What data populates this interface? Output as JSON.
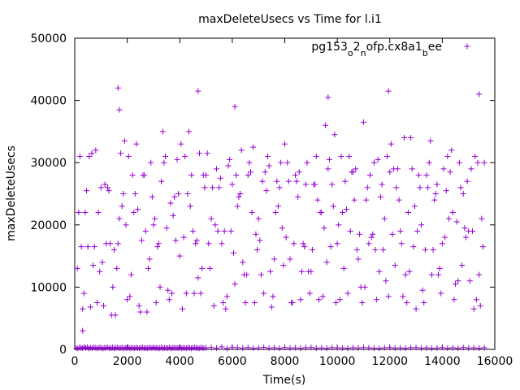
{
  "chart_data": {
    "type": "scatter",
    "title": "maxDeleteUsecs vs Time for l.i1",
    "xlabel": "Time(s)",
    "ylabel": "maxDeleteUsecs",
    "xlim": [
      0,
      16000
    ],
    "ylim": [
      0,
      50000
    ],
    "x_ticks": [
      0,
      2000,
      4000,
      6000,
      8000,
      10000,
      12000,
      14000,
      16000
    ],
    "y_ticks": [
      0,
      10000,
      20000,
      30000,
      40000,
      50000
    ],
    "grid": false,
    "legend_position": "top-right",
    "series": [
      {
        "name": "pg153_o2_nofp.cx8a1_bee",
        "marker": "+",
        "color": "#9400d3",
        "x": [
          60,
          120,
          180,
          240,
          300,
          360,
          420,
          480,
          540,
          600,
          660,
          720,
          780,
          840,
          900,
          960,
          1020,
          1080,
          1140,
          1200,
          1260,
          1320,
          1380,
          1440,
          1500,
          1560,
          1620,
          1680,
          1740,
          1800,
          1860,
          1920,
          1980,
          2040,
          2100,
          2160,
          2220,
          2280,
          2340,
          2400,
          2460,
          2520,
          2580,
          2640,
          2700,
          2760,
          2820,
          2880,
          2940,
          3000,
          3060,
          3120,
          3180,
          3240,
          3300,
          3360,
          3420,
          3480,
          3540,
          3600,
          3660,
          3720,
          3780,
          3840,
          3900,
          3960,
          4020,
          4080,
          4140,
          4200,
          4260,
          4320,
          4380,
          4440,
          4500,
          4560,
          4620,
          4680,
          4740,
          4800,
          4860,
          4920,
          5000,
          5200,
          5400,
          5600,
          5800,
          6000,
          6200,
          6400,
          6600,
          6800,
          7000,
          7200,
          7400,
          7600,
          7800,
          8000,
          8200,
          8400,
          8600,
          8800,
          9000,
          9200,
          9400,
          9600,
          9800,
          10000,
          10200,
          10400,
          10600,
          10800,
          11000,
          11200,
          11400,
          11600,
          11800,
          12000,
          12200,
          12400,
          12600,
          12800,
          13000,
          13200,
          13400,
          13600,
          13800,
          14000,
          14200,
          14400,
          14600,
          14800,
          15000,
          15200,
          15400,
          15600,
          100,
          300,
          500,
          700,
          900,
          1100,
          1300,
          1500,
          1700,
          1900,
          2100,
          2300,
          2500,
          2700,
          2900,
          3100,
          3300,
          3500,
          3700,
          3900,
          4100,
          4300,
          4500,
          4700,
          4900,
          5100,
          5300,
          5500,
          5700,
          5900,
          6100,
          6300,
          6500,
          6700,
          6900,
          7100,
          7300,
          7500,
          7700,
          7900,
          8100,
          8300,
          8500,
          8700,
          8900,
          9100,
          9300,
          9500,
          9700,
          9900,
          10100,
          10300,
          10500,
          10700,
          10900,
          11100,
          11300,
          11500,
          11700,
          11900,
          12100,
          12300,
          12500,
          12700,
          12900,
          13100,
          13300,
          13500,
          13700,
          13900,
          14100,
          14300,
          14500,
          14700,
          14900,
          15100,
          15300,
          15500,
          150,
          350,
          550,
          750,
          950,
          1150,
          1350,
          1550,
          1750,
          1950,
          2150,
          2350,
          2550,
          2750,
          2950,
          3150,
          3350,
          3550,
          3750,
          3950,
          4150,
          4350,
          4550,
          4750,
          4950,
          5150,
          5350,
          5550,
          5750,
          5950,
          6150,
          6350,
          6550,
          6750,
          6950,
          7150,
          7350,
          7550,
          7750,
          7950,
          8150,
          8350,
          8550,
          8750,
          8950,
          9150,
          9350,
          9550,
          9750,
          9950,
          10150,
          10350,
          10550,
          10750,
          10950,
          11150,
          11350,
          11550,
          11750,
          11950,
          12150,
          12350,
          12550,
          12750,
          12950,
          13150,
          13350,
          13550,
          13750,
          13950,
          14150,
          14350,
          14550,
          14750,
          14950,
          15150,
          15350,
          15550,
          200,
          400,
          600,
          800,
          1000,
          1200,
          1400,
          1600,
          1800,
          2000,
          2200,
          2400,
          2600,
          2800,
          3000,
          3200,
          3400,
          3600,
          3800,
          4000,
          4200,
          4400,
          4600,
          4800,
          5000,
          5200,
          5400,
          5600,
          5800,
          6000,
          6200,
          6400,
          6600,
          6800,
          7000,
          7200,
          7400,
          7600,
          7800,
          8000,
          8200,
          8400,
          8600,
          8800,
          9000,
          9200,
          9400,
          9600,
          9800,
          10000,
          10200,
          10400,
          10600,
          10800,
          11000,
          11200,
          11400,
          11600,
          11800,
          12000,
          12200,
          12400,
          12600,
          12800,
          13000,
          13200,
          13400,
          13600,
          13800,
          14000,
          14200,
          14400,
          14600,
          14800,
          15000,
          15200,
          15400,
          15600,
          250,
          450,
          650,
          850,
          1050,
          1250,
          1450,
          1650,
          1850,
          2050,
          2250,
          2450,
          2650,
          2850,
          3050,
          3250,
          3450,
          3650,
          3850,
          4050,
          4250,
          4450,
          4650,
          4850,
          5050,
          5250,
          5450,
          5650,
          5850,
          6050,
          6250,
          6450,
          6650,
          6850,
          7050,
          7250,
          7450,
          7650,
          7850,
          8050,
          8250,
          8450,
          8650,
          8850,
          9050,
          9250,
          9450,
          9650,
          9850,
          10050,
          10250,
          10450,
          10650,
          10850,
          11050,
          11250,
          11450,
          11650,
          11850,
          12050,
          12250,
          12450,
          12650,
          12850,
          13050,
          13250,
          13450,
          13650,
          13850,
          14050,
          14250,
          14450,
          14650,
          14850,
          15050,
          15250,
          15450,
          1650,
          1700,
          4700,
          9650,
          11950,
          15400,
          6100,
          300
        ],
        "y": [
          200,
          150,
          300,
          250,
          180,
          400,
          220,
          350,
          150,
          280,
          190,
          300,
          260,
          170,
          230,
          310,
          200,
          150,
          270,
          240,
          330,
          180,
          210,
          290,
          160,
          250,
          300,
          190,
          220,
          280,
          170,
          240,
          200,
          310,
          150,
          260,
          230,
          180,
          290,
          210,
          170,
          250,
          300,
          190,
          220,
          160,
          280,
          240,
          200,
          330,
          180,
          260,
          150,
          210,
          290,
          170,
          230,
          250,
          190,
          300,
          160,
          220,
          280,
          200,
          240,
          180,
          310,
          150,
          260,
          210,
          190,
          290,
          230,
          170,
          250,
          300,
          220,
          200,
          160,
          280,
          240,
          190,
          250,
          300,
          200,
          400,
          150,
          350,
          280,
          220,
          300,
          180,
          250,
          330,
          200,
          260,
          180,
          300,
          220,
          250,
          190,
          280,
          310,
          200,
          240,
          170,
          300,
          260,
          220,
          190,
          280,
          230,
          300,
          250,
          200,
          170,
          260,
          310,
          220,
          240,
          190,
          280,
          300,
          210,
          250,
          170,
          230,
          290,
          200,
          260,
          180,
          300,
          220,
          250,
          190,
          280,
          13000,
          6500,
          16500,
          13500,
          22000,
          7000,
          25500,
          16000,
          21000,
          33500,
          8500,
          25000,
          6000,
          19000,
          30000,
          7500,
          27000,
          19500,
          9000,
          30500,
          6500,
          25000,
          19000,
          11500,
          28000,
          17000,
          7000,
          26000,
          19000,
          30500,
          10500,
          25000,
          7500,
          28500,
          18500,
          12000,
          25500,
          6800,
          27000,
          19500,
          30000,
          7500,
          24500,
          17000,
          12500,
          26500,
          8000,
          19500,
          30500,
          34500,
          8000,
          27000,
          19000,
          29000,
          10000,
          24000,
          18000,
          8000,
          26500,
          31000,
          18500,
          29000,
          8500,
          22000,
          16500,
          28000,
          7500,
          30000,
          24000,
          13000,
          18000,
          28500,
          10500,
          26000,
          18000,
          29000,
          8000,
          21000,
          22000,
          9000,
          31000,
          16500,
          12500,
          26500,
          17000,
          5500,
          31500,
          20000,
          12000,
          33000,
          17500,
          6000,
          24500,
          16500,
          35000,
          9500,
          21500,
          25000,
          18000,
          35000,
          9000,
          31500,
          26000,
          13000,
          20000,
          27500,
          6500,
          19000,
          28000,
          32000,
          12000,
          22000,
          16000,
          27000,
          31000,
          8500,
          23000,
          13500,
          27000,
          17000,
          28500,
          16500,
          9000,
          26500,
          22000,
          36000,
          16500,
          7500,
          31000,
          22500,
          28500,
          16000,
          7500,
          26000,
          18500,
          30500,
          16000,
          8500,
          29000,
          24000,
          34000,
          12500,
          23000,
          26000,
          16000,
          33500,
          25000,
          9000,
          25500,
          32000,
          20500,
          13500,
          27000,
          19000,
          30000,
          16500,
          31000,
          22000,
          6800,
          32000,
          26000,
          17000,
          5500,
          13000,
          23000,
          8000,
          28000,
          22500,
          28000,
          13000,
          20000,
          17000,
          30000,
          8000,
          24500,
          15000,
          31000,
          23000,
          17000,
          9000,
          28000,
          21000,
          29000,
          17000,
          8500,
          26500,
          23000,
          14000,
          28000,
          32500,
          21000,
          9000,
          29500,
          14500,
          26000,
          33000,
          14500,
          28000,
          8000,
          26500,
          12500,
          31000,
          22000,
          14000,
          26500,
          17000,
          22000,
          9000,
          28500,
          14500,
          36500,
          17000,
          30000,
          12500,
          21000,
          28500,
          13500,
          19000,
          12000,
          34000,
          6500,
          20000,
          28000,
          12000,
          26500,
          17000,
          31000,
          22000,
          11000,
          25000,
          19000,
          6500,
          12000,
          30000,
          16500,
          25500,
          31500,
          7500,
          14000,
          26000,
          10000,
          17000,
          25000,
          31000,
          22000,
          7000,
          28000,
          14500,
          21000,
          10000,
          31000,
          23500,
          17500,
          33000,
          9000,
          28000,
          17500,
          13000,
          31500,
          26000,
          19000,
          7500,
          29500,
          15500,
          24500,
          12000,
          30000,
          7500,
          17500,
          28500,
          12500,
          22000,
          30000,
          18000,
          7500,
          27000,
          12500,
          30000,
          16000,
          24000,
          8500,
          29000,
          23000,
          20000,
          13000,
          31000,
          24000,
          18500,
          10000,
          28000,
          16000,
          24500,
          11000,
          33000,
          26000,
          17000,
          7500,
          29000,
          19000,
          9500,
          26000,
          16000,
          12000,
          29000,
          21000,
          8000,
          30000,
          19500,
          11000,
          31000,
          7000,
          42000,
          38500,
          41500,
          40500,
          41500,
          41000,
          39000,
          3000
        ]
      }
    ]
  }
}
